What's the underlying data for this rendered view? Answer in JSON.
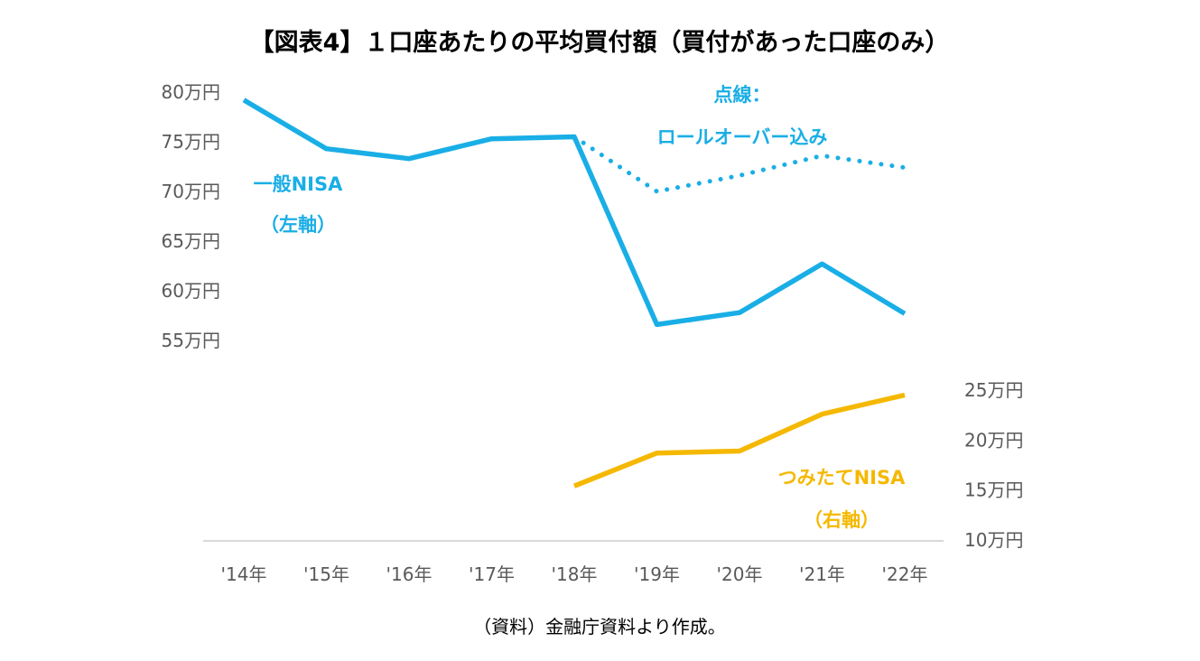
{
  "chart_data": {
    "type": "line",
    "title": "【図表4】１口座あたりの平均買付額（買付があった口座のみ）",
    "categories": [
      "'14年",
      "'15年",
      "'16年",
      "'17年",
      "'18年",
      "'19年",
      "'20年",
      "'21年",
      "'22年"
    ],
    "left_axis": {
      "ticks": [
        80,
        75,
        70,
        65,
        60,
        55
      ],
      "tick_labels": [
        "80万円",
        "75万円",
        "70万円",
        "65万円",
        "60万円",
        "55万円"
      ],
      "ylim": [
        55,
        80
      ]
    },
    "right_axis": {
      "ticks": [
        25,
        20,
        15,
        10
      ],
      "tick_labels": [
        "25万円",
        "20万円",
        "15万円",
        "10万円"
      ],
      "ylim": [
        10,
        25
      ]
    },
    "series": [
      {
        "name": "一般NISA（左軸）",
        "label_lines": [
          "一般NISA",
          "（左軸）"
        ],
        "axis": "left",
        "style": "solid",
        "color": "#1AAEE6",
        "values": [
          79.2,
          74.3,
          73.3,
          75.3,
          75.5,
          56.6,
          57.8,
          62.7,
          57.7
        ]
      },
      {
        "name": "点線：ロールオーバー込み",
        "label_lines": [
          "点線：",
          "ロールオーバー込み"
        ],
        "axis": "left",
        "style": "dotted",
        "color": "#1AAEE6",
        "values": [
          null,
          null,
          null,
          null,
          75.5,
          70.0,
          71.6,
          73.6,
          72.4
        ]
      },
      {
        "name": "つみたてNISA（右軸）",
        "label_lines": [
          "つみたてNISA",
          "（右軸）"
        ],
        "axis": "right",
        "style": "solid",
        "color": "#F5B800",
        "values": [
          null,
          null,
          null,
          null,
          15.4,
          18.7,
          18.9,
          22.6,
          24.5
        ]
      }
    ],
    "grid": false,
    "source": "（資料）金融庁資料より作成。"
  }
}
